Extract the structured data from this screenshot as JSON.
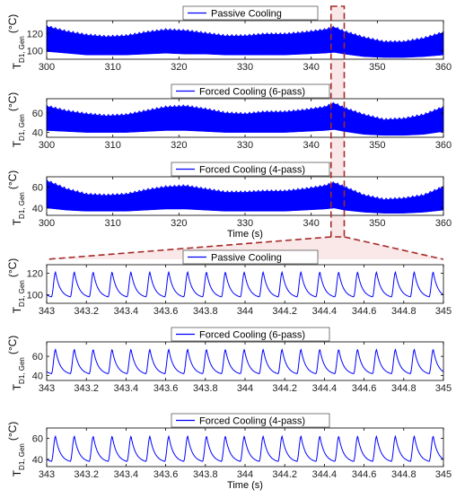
{
  "chart_data": [
    {
      "type": "line",
      "legend": "Passive Cooling",
      "ylabel": "T",
      "ylabel_sub": "D1, Gen",
      "ylabel_unit": "(°C)",
      "xlim": [
        300,
        360
      ],
      "ylim": [
        90,
        135
      ],
      "xticks": [
        300,
        310,
        320,
        330,
        340,
        350,
        360
      ],
      "yticks": [
        100,
        120
      ],
      "envelope": {
        "x": [
          300,
          303,
          306,
          309,
          312,
          315,
          318,
          321,
          324,
          327,
          330,
          333,
          336,
          339,
          342,
          343.5,
          345,
          348,
          351,
          354,
          357,
          360
        ],
        "max": [
          128,
          122,
          118,
          116,
          117,
          121,
          124,
          123,
          120,
          117,
          117,
          119,
          119,
          121,
          124,
          127,
          122,
          115,
          110,
          110,
          114,
          121
        ],
        "min": [
          99,
          97,
          95,
          95,
          95,
          96,
          97,
          96,
          96,
          95,
          95,
          95,
          95,
          96,
          97,
          98,
          96,
          93,
          92,
          92,
          93,
          95
        ]
      },
      "color": "#0000ff"
    },
    {
      "type": "line",
      "legend": "Forced Cooling (6-pass)",
      "ylabel": "T",
      "ylabel_sub": "D1, Gen",
      "ylabel_unit": "(°C)",
      "xlim": [
        300,
        360
      ],
      "ylim": [
        35,
        75
      ],
      "xticks": [
        300,
        310,
        320,
        330,
        340,
        350,
        360
      ],
      "yticks": [
        40,
        60
      ],
      "envelope": {
        "x": [
          300,
          303,
          306,
          309,
          312,
          315,
          318,
          321,
          324,
          327,
          330,
          333,
          336,
          339,
          342,
          343.5,
          345,
          348,
          351,
          354,
          357,
          360
        ],
        "max": [
          67,
          62,
          59,
          57,
          58,
          62,
          66,
          67,
          64,
          60,
          59,
          61,
          61,
          63,
          66,
          70,
          65,
          58,
          53,
          54,
          58,
          66
        ],
        "min": [
          42,
          41,
          40,
          40,
          40,
          41,
          42,
          42,
          41,
          40,
          40,
          40,
          40,
          41,
          42,
          43,
          41,
          38,
          37,
          37,
          38,
          41
        ]
      },
      "color": "#0000ff"
    },
    {
      "type": "line",
      "legend": "Forced Cooling (4-pass)",
      "ylabel": "T",
      "ylabel_sub": "D1, Gen",
      "ylabel_unit": "(°C)",
      "xlim": [
        300,
        360
      ],
      "ylim": [
        33,
        70
      ],
      "xticks": [
        300,
        310,
        320,
        330,
        340,
        350,
        360
      ],
      "yticks": [
        40,
        60
      ],
      "xlabel": "Time (s)",
      "envelope": {
        "x": [
          300,
          303,
          306,
          309,
          312,
          315,
          318,
          321,
          324,
          327,
          330,
          333,
          336,
          339,
          342,
          343.5,
          345,
          348,
          351,
          354,
          357,
          360
        ],
        "max": [
          66,
          58,
          53,
          52,
          53,
          57,
          60,
          61,
          58,
          55,
          55,
          56,
          56,
          58,
          61,
          64,
          60,
          52,
          48,
          49,
          52,
          60
        ],
        "min": [
          40,
          38,
          37,
          37,
          37,
          38,
          39,
          39,
          38,
          37,
          37,
          37,
          37,
          38,
          39,
          40,
          38,
          36,
          35,
          35,
          36,
          38
        ]
      },
      "color": "#0000ff"
    },
    {
      "type": "line",
      "legend": "Passive Cooling",
      "ylabel": "T",
      "ylabel_sub": "D1, Gen",
      "ylabel_unit": "(°C)",
      "xlim": [
        343,
        345
      ],
      "ylim": [
        92,
        128
      ],
      "xticks": [
        "343",
        "343.2",
        "343.4",
        "343.6",
        "343.8",
        "344",
        "344.2",
        "344.4",
        "344.6",
        "344.8",
        "345"
      ],
      "yticks": [
        100,
        120
      ],
      "oscillation": {
        "period": 0.0952,
        "min": 98,
        "max": 121
      },
      "color": "#0000ff"
    },
    {
      "type": "line",
      "legend": "Forced Cooling (6-pass)",
      "ylabel": "T",
      "ylabel_sub": "D1, Gen",
      "ylabel_unit": "(°C)",
      "xlim": [
        343,
        345
      ],
      "ylim": [
        35,
        75
      ],
      "xticks": [
        "343",
        "343.2",
        "343.4",
        "343.6",
        "343.8",
        "344",
        "344.2",
        "344.4",
        "344.6",
        "344.8",
        "345"
      ],
      "yticks": [
        40,
        60
      ],
      "oscillation": {
        "period": 0.0952,
        "min": 42,
        "max": 67
      },
      "color": "#0000ff"
    },
    {
      "type": "line",
      "legend": "Forced Cooling (4-pass)",
      "ylabel": "T",
      "ylabel_sub": "D1, Gen",
      "ylabel_unit": "(°C)",
      "xlim": [
        343,
        345
      ],
      "ylim": [
        33,
        70
      ],
      "xticks": [
        "343",
        "343.2",
        "343.4",
        "343.6",
        "343.8",
        "344",
        "344.2",
        "344.4",
        "344.6",
        "344.8",
        "345"
      ],
      "yticks": [
        40,
        60
      ],
      "xlabel": "Time (s)",
      "oscillation": {
        "period": 0.0952,
        "min": 38,
        "max": 62
      },
      "color": "#0000ff"
    }
  ],
  "zoom": {
    "x_from": 343,
    "x_to": 345,
    "color": "#a52a2a"
  }
}
